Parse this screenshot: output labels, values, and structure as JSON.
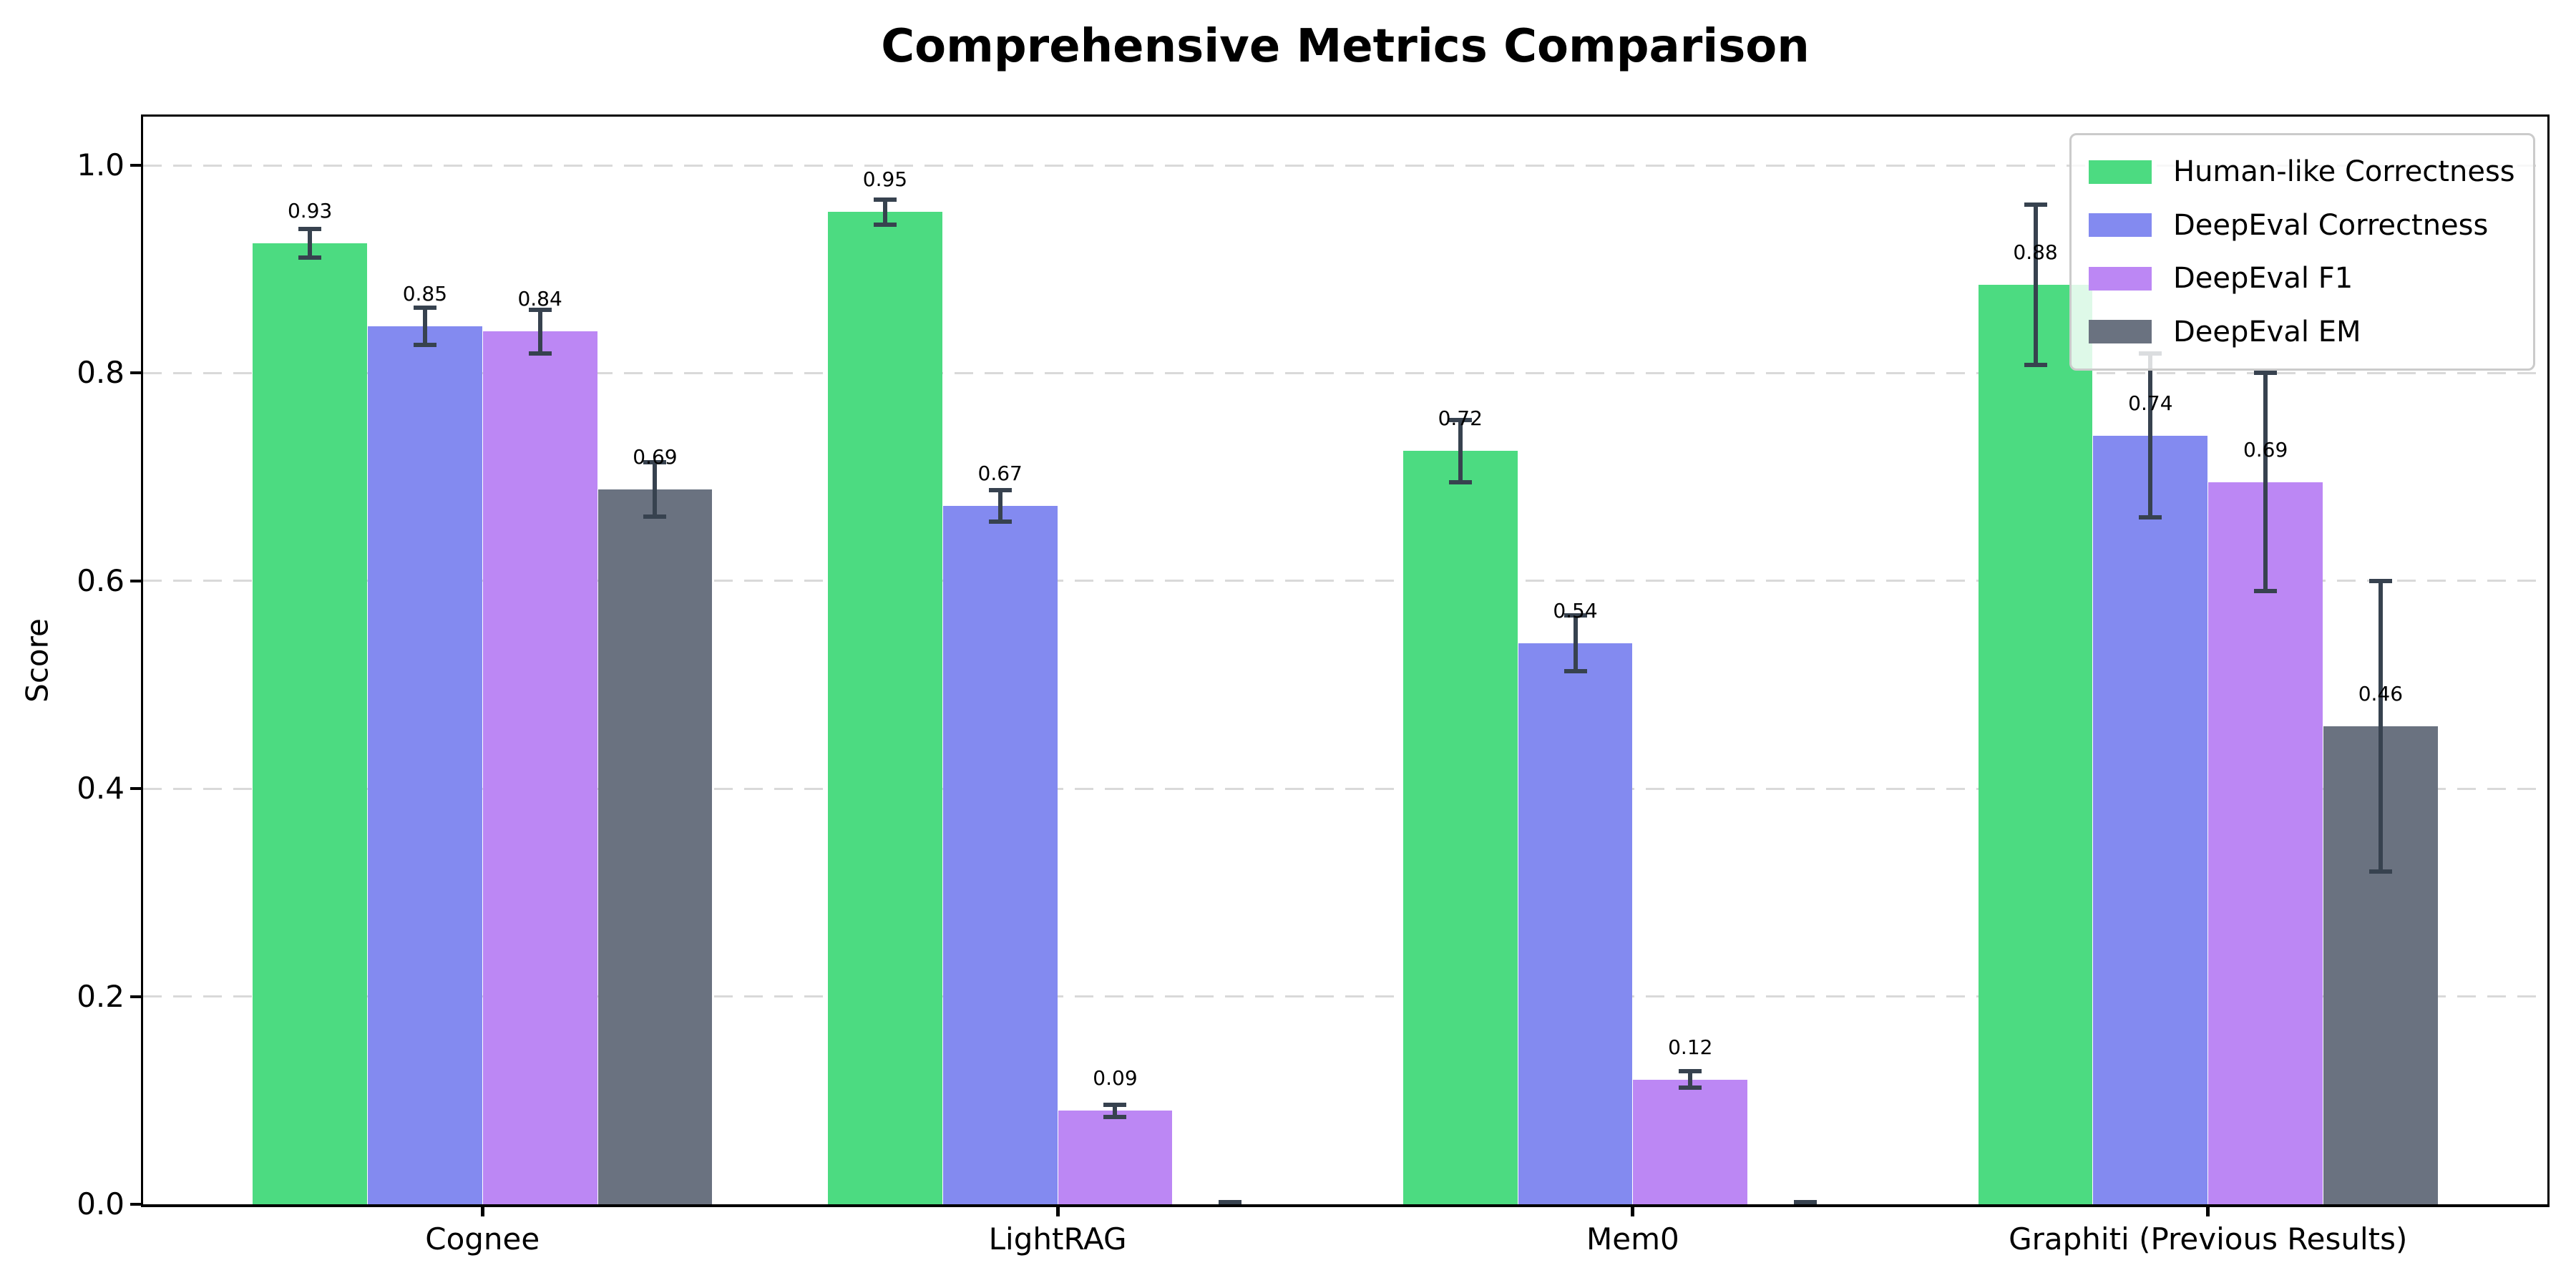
{
  "chart_data": {
    "type": "bar",
    "title": "Comprehensive Metrics Comparison",
    "ylabel": "Score",
    "xlabel": "",
    "categories": [
      "Cognee",
      "LightRAG",
      "Mem0",
      "Graphiti (Previous Results)"
    ],
    "series": [
      {
        "name": "Human-like Correctness",
        "color": "#4cdb81",
        "values": [
          0.925,
          0.955,
          0.725,
          0.885
        ],
        "errors": [
          0.014,
          0.012,
          0.03,
          0.077
        ],
        "labels": [
          "0.93",
          "0.95",
          "0.72",
          "0.88"
        ]
      },
      {
        "name": "DeepEval Correctness",
        "color": "#838af0",
        "values": [
          0.845,
          0.672,
          0.54,
          0.74
        ],
        "errors": [
          0.018,
          0.015,
          0.027,
          0.079
        ],
        "labels": [
          "0.85",
          "0.67",
          "0.54",
          "0.74"
        ]
      },
      {
        "name": "DeepEval F1",
        "color": "#bc87f4",
        "values": [
          0.84,
          0.09,
          0.12,
          0.695
        ],
        "errors": [
          0.021,
          0.006,
          0.008,
          0.105
        ],
        "labels": [
          "0.84",
          "0.09",
          "0.12",
          "0.69"
        ]
      },
      {
        "name": "DeepEval EM",
        "color": "#6a7280",
        "values": [
          0.688,
          0.0,
          0.0,
          0.46
        ],
        "errors": [
          0.026,
          0.002,
          0.002,
          0.14
        ],
        "labels": [
          "0.69",
          null,
          null,
          "0.46"
        ]
      }
    ],
    "yticks": [
      "0.0",
      "0.2",
      "0.4",
      "0.6",
      "0.8",
      "1.0"
    ],
    "ylim": [
      0.0,
      1.047
    ],
    "grid": "horizontal dashed gridlines at each y tick",
    "legend_position": "upper right",
    "colors": {
      "error_bar": "#37424f",
      "grid": "#d9d9d9",
      "axis": "#000000",
      "legend_border": "#cbcbcb",
      "background": "#ffffff"
    }
  }
}
